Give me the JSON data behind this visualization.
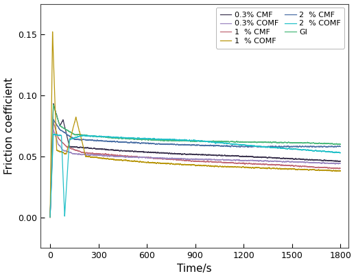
{
  "xlabel": "Time/s",
  "ylabel": "Friction coefficient",
  "xlim": [
    -60,
    1850
  ],
  "ylim": [
    -0.025,
    0.175
  ],
  "yticks": [
    0.0,
    0.05,
    0.1,
    0.15
  ],
  "xticks": [
    0,
    300,
    600,
    900,
    1200,
    1500,
    1800
  ],
  "legend_labels_col1": [
    "0.3% CMF",
    "1  % CMF",
    "2  % CMF",
    "GI"
  ],
  "legend_labels_col2": [
    "0.3% COMF",
    "1  % COMF",
    "2  % COMF"
  ],
  "colors": {
    "cmf_03": "#3d3550",
    "cmf_1": "#c06875",
    "cmf_2": "#4a6fa5",
    "comf_03": "#9b87c0",
    "comf_1": "#b8960c",
    "comf_2": "#22c0c8",
    "gi": "#4ab87a"
  },
  "legend_fontsize": 8,
  "axis_fontsize": 11,
  "tick_fontsize": 9
}
